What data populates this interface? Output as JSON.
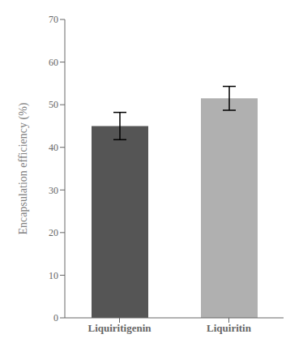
{
  "chart_data": {
    "type": "bar",
    "categories": [
      "Liquiritigenin",
      "Liquiritin"
    ],
    "values": [
      45.0,
      51.5
    ],
    "errors": [
      3.2,
      2.8
    ],
    "colors": [
      "#555555",
      "#b0b0b0"
    ],
    "ylabel": "Encapsulation efficiency (%)",
    "ylim": [
      0,
      70
    ],
    "yticks": [
      0,
      10,
      20,
      30,
      40,
      50,
      60,
      70
    ],
    "grid": false
  }
}
